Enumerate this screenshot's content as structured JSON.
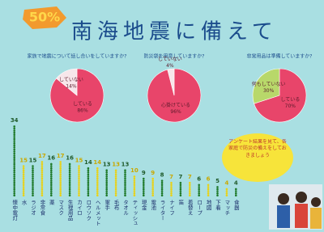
{
  "chart_data": [
    {
      "type": "pie",
      "question": "家族で地震について話し合いをしていますか?",
      "slices": [
        {
          "label": "している",
          "value": 86,
          "value_label": "86%",
          "color": "#e8456a"
        },
        {
          "label": "していない",
          "value": 14,
          "value_label": "14%",
          "color": "#f7e6ea"
        }
      ]
    },
    {
      "type": "pie",
      "question": "防災袋を用意していますか?",
      "slices": [
        {
          "label": "心掛けている",
          "value": 96,
          "value_label": "96%",
          "color": "#e8456a"
        },
        {
          "label": "していない",
          "value": 4,
          "value_label": "4%",
          "color": "#f7e6ea"
        }
      ]
    },
    {
      "type": "pie",
      "question": "非常用品は準備していますか?",
      "slices": [
        {
          "label": "している",
          "value": 70,
          "value_label": "70%",
          "color": "#e8456a"
        },
        {
          "label": "何もしていない",
          "value": 30,
          "value_label": "30%",
          "color": "#b8d86a"
        }
      ]
    },
    {
      "type": "dots",
      "title": "50%",
      "subtitle": "南海地震に備えて",
      "categories": [
        "懐中電灯",
        "水",
        "ラジオ",
        "非常食",
        "薬",
        "マスク",
        "生理用品",
        "カイロ",
        "ロウソク",
        "ヘルメット",
        "軍手",
        "毛布",
        "タオル",
        "ティッシュ",
        "現金",
        "電池",
        "ライター",
        "ナイフ",
        "笛",
        "着替え",
        "ロープ",
        "地図",
        "下着",
        "マッチ",
        "食器"
      ],
      "values": [
        34,
        15,
        15,
        17,
        16,
        17,
        16,
        15,
        14,
        14,
        13,
        13,
        13,
        10,
        9,
        9,
        8,
        7,
        7,
        7,
        6,
        6,
        5,
        4,
        4
      ],
      "colors": [
        "#1f7a2a",
        "#e8d21a"
      ],
      "ylim": [
        0,
        36
      ],
      "note": "アンケート結果を見て、各家庭で防災の備えをしておきましょう"
    }
  ]
}
